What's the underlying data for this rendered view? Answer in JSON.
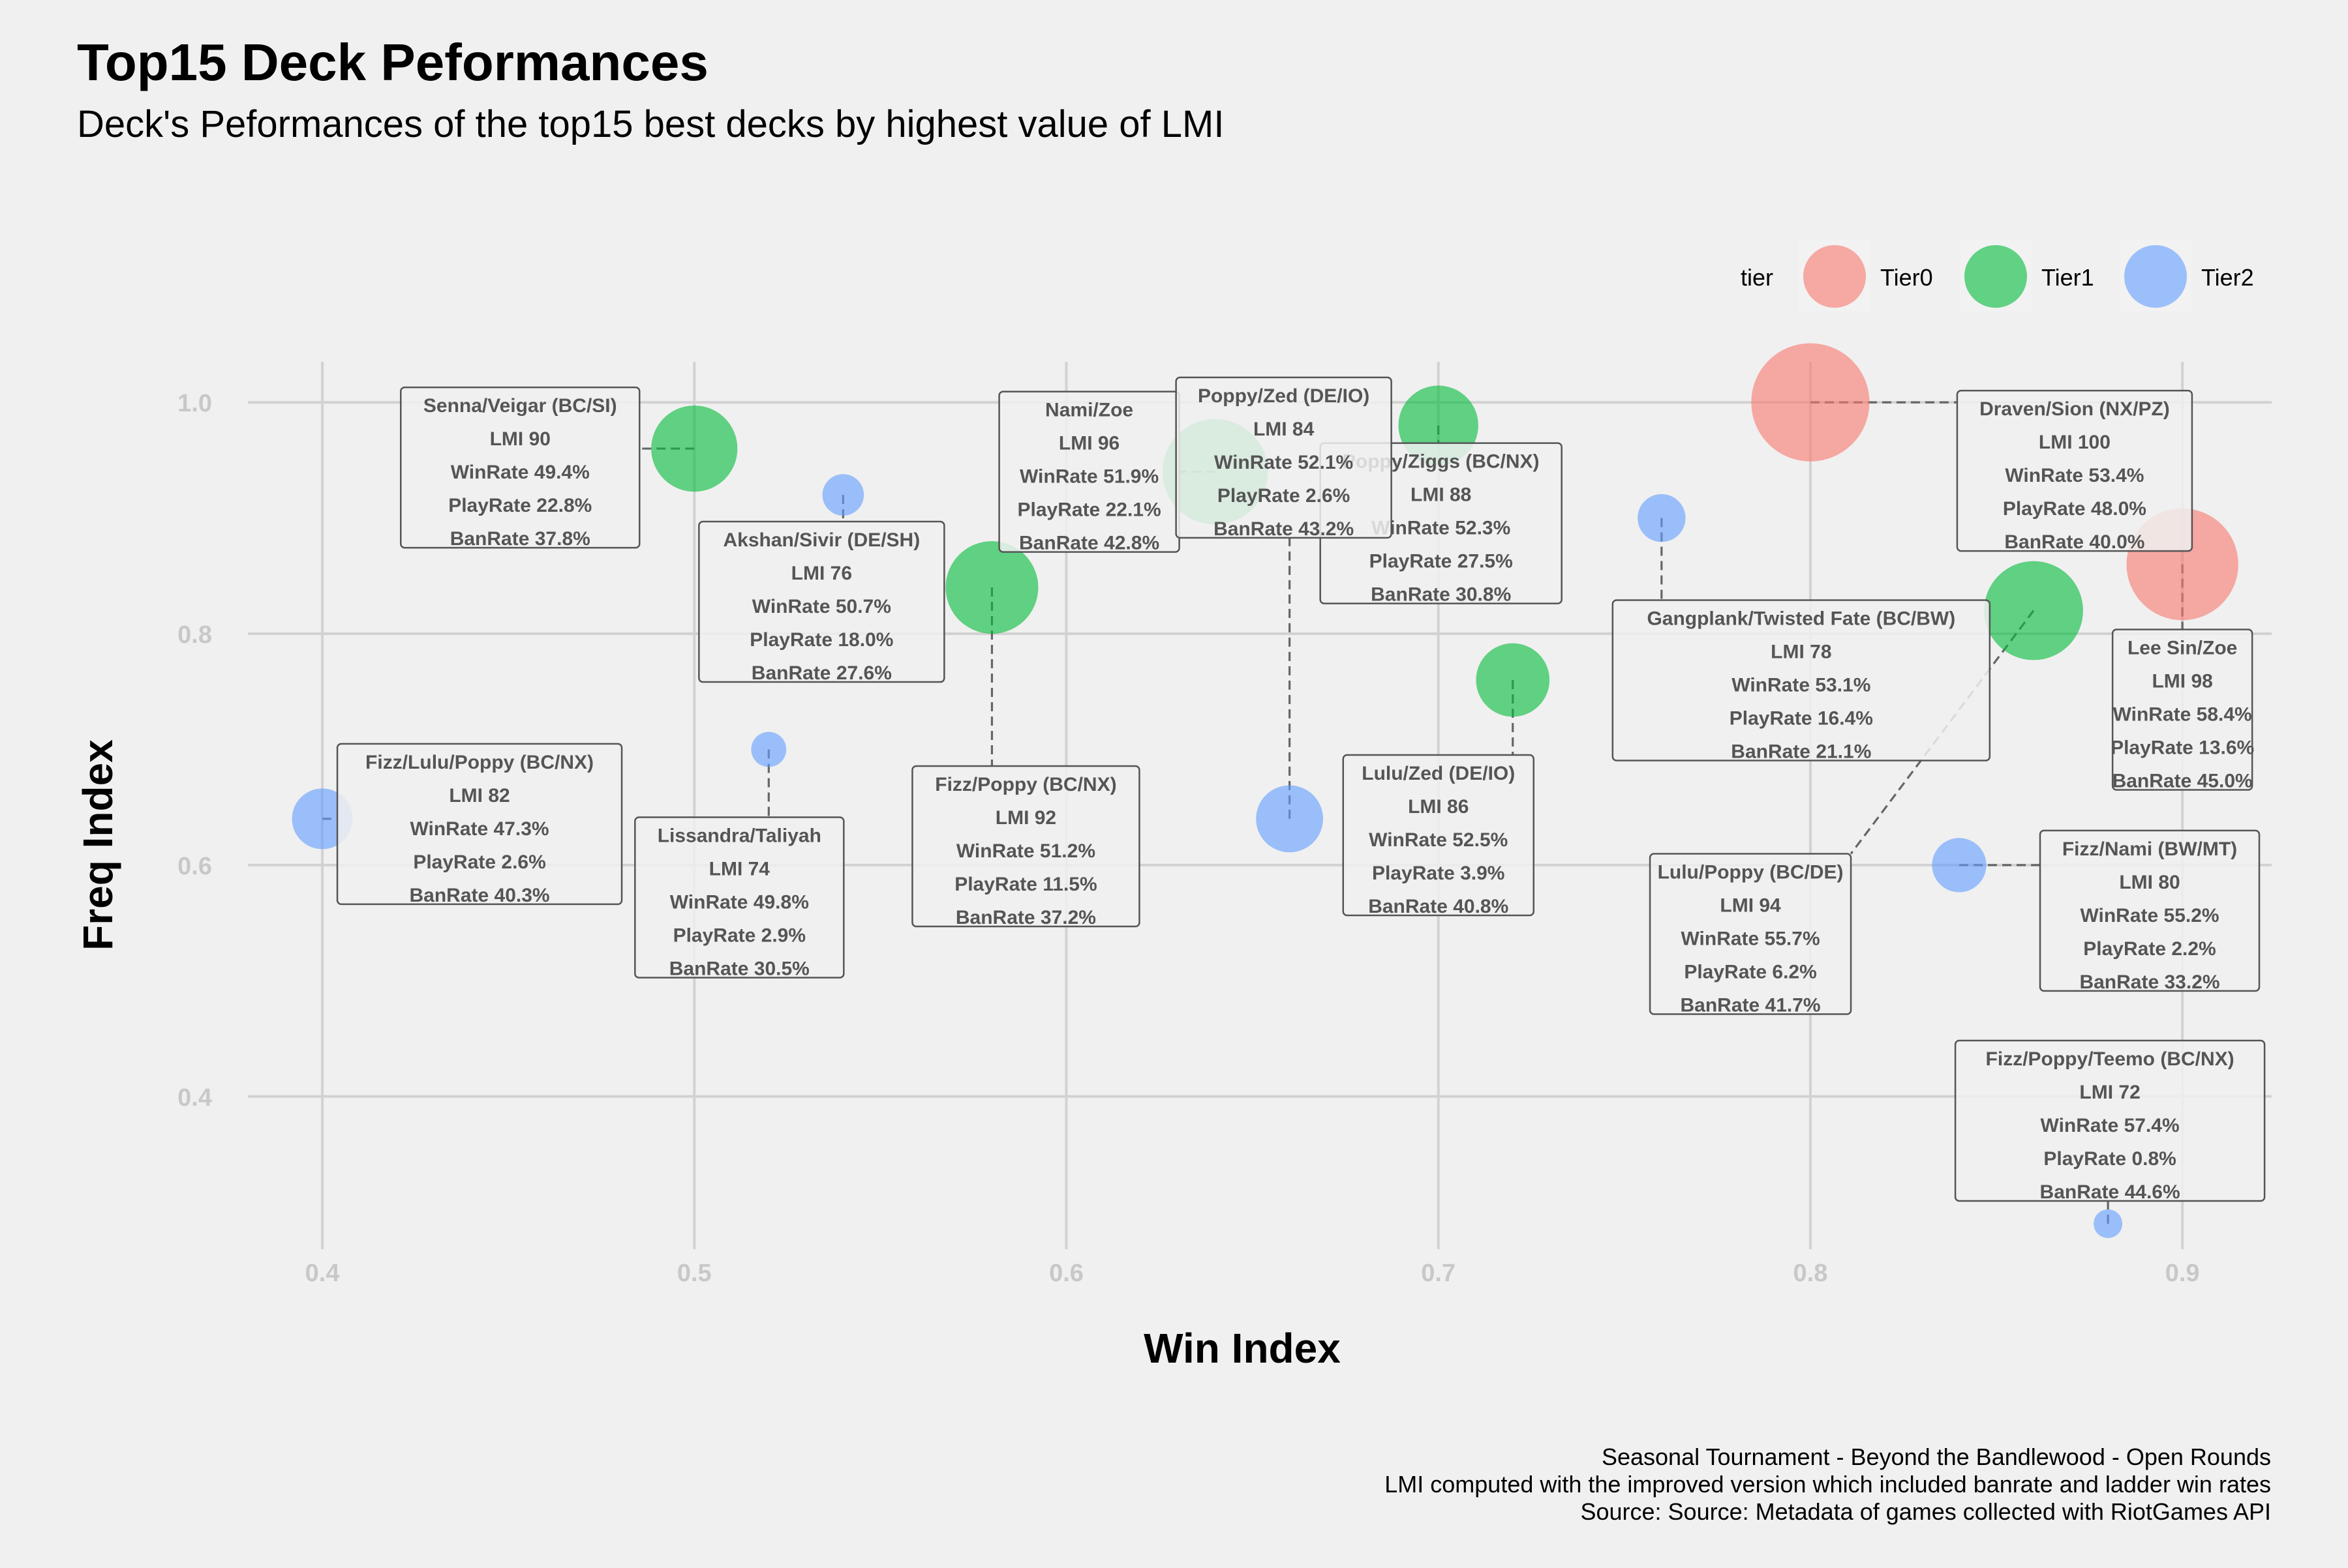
{
  "chart_data": {
    "type": "scatter",
    "title": "Top15 Deck Peformances",
    "subtitle": "Deck's Peformances of the top15 best decks by highest value of LMI",
    "xlabel": "Win Index",
    "ylabel": "Freq Index",
    "xlim": [
      0.38,
      0.924
    ],
    "ylim": [
      0.268,
      1.035
    ],
    "x_ticks": [
      "0.4",
      "0.5",
      "0.6",
      "0.7",
      "0.8",
      "0.9"
    ],
    "y_ticks": [
      "0.4",
      "0.6",
      "0.8",
      "1.0"
    ],
    "grid": true,
    "legend": {
      "title": "tier",
      "position": "top-right",
      "items": [
        {
          "name": "Tier0",
          "color": "#F8766D"
        },
        {
          "name": "Tier1",
          "color": "#00BA38"
        },
        {
          "name": "Tier2",
          "color": "#619CFF"
        }
      ]
    },
    "points": [
      {
        "deck": "Draven/Sion (NX/PZ)",
        "tier": "Tier0",
        "x": 0.8,
        "y": 1.0,
        "lmi": 100,
        "label": [
          "Draven/Sion (NX/PZ)",
          "LMI 100",
          "WinRate 53.4%",
          "PlayRate 48.0%",
          "BanRate 40.0%"
        ]
      },
      {
        "deck": "Lee Sin/Zoe",
        "tier": "Tier0",
        "x": 0.9,
        "y": 0.86,
        "lmi": 98,
        "label": [
          "Lee Sin/Zoe",
          "LMI 98",
          "WinRate 58.4%",
          "PlayRate 13.6%",
          "BanRate 45.0%"
        ]
      },
      {
        "deck": "Nami/Zoe",
        "tier": "Tier1",
        "x": 0.64,
        "y": 0.94,
        "lmi": 96,
        "label": [
          "Nami/Zoe",
          "LMI 96",
          "WinRate 51.9%",
          "PlayRate 22.1%",
          "BanRate 42.8%"
        ]
      },
      {
        "deck": "Lulu/Poppy (BC/DE)",
        "tier": "Tier1",
        "x": 0.86,
        "y": 0.82,
        "lmi": 94,
        "label": [
          "Lulu/Poppy (BC/DE)",
          "LMI 94",
          "WinRate 55.7%",
          "PlayRate 6.2%",
          "BanRate 41.7%"
        ]
      },
      {
        "deck": "Fizz/Poppy (BC/NX)",
        "tier": "Tier1",
        "x": 0.58,
        "y": 0.84,
        "lmi": 92,
        "label": [
          "Fizz/Poppy (BC/NX)",
          "LMI 92",
          "WinRate 51.2%",
          "PlayRate 11.5%",
          "BanRate 37.2%"
        ]
      },
      {
        "deck": "Senna/Veigar (BC/SI)",
        "tier": "Tier1",
        "x": 0.5,
        "y": 0.96,
        "lmi": 90,
        "label": [
          "Senna/Veigar (BC/SI)",
          "LMI 90",
          "WinRate 49.4%",
          "PlayRate 22.8%",
          "BanRate 37.8%"
        ]
      },
      {
        "deck": "Poppy/Ziggs (BC/NX)",
        "tier": "Tier1",
        "x": 0.7,
        "y": 0.98,
        "lmi": 88,
        "label": [
          "Poppy/Ziggs (BC/NX)",
          "LMI 88",
          "WinRate 52.3%",
          "PlayRate 27.5%",
          "BanRate 30.8%"
        ]
      },
      {
        "deck": "Lulu/Zed (DE/IO)",
        "tier": "Tier1",
        "x": 0.72,
        "y": 0.76,
        "lmi": 86,
        "label": [
          "Lulu/Zed (DE/IO)",
          "LMI 86",
          "WinRate 52.5%",
          "PlayRate 3.9%",
          "BanRate 40.8%"
        ]
      },
      {
        "deck": "Poppy/Zed (DE/IO)",
        "tier": "Tier2",
        "x": 0.66,
        "y": 0.64,
        "lmi": 84,
        "label": [
          "Poppy/Zed (DE/IO)",
          "LMI 84",
          "WinRate 52.1%",
          "PlayRate 2.6%",
          "BanRate 43.2%"
        ]
      },
      {
        "deck": "Fizz/Lulu/Poppy (BC/NX)",
        "tier": "Tier2",
        "x": 0.4,
        "y": 0.64,
        "lmi": 82,
        "label": [
          "Fizz/Lulu/Poppy (BC/NX)",
          "LMI 82",
          "WinRate 47.3%",
          "PlayRate 2.6%",
          "BanRate 40.3%"
        ]
      },
      {
        "deck": "Fizz/Nami (BW/MT)",
        "tier": "Tier2",
        "x": 0.84,
        "y": 0.6,
        "lmi": 80,
        "label": [
          "Fizz/Nami (BW/MT)",
          "LMI 80",
          "WinRate 55.2%",
          "PlayRate 2.2%",
          "BanRate 33.2%"
        ]
      },
      {
        "deck": "Gangplank/Twisted Fate (BC/BW)",
        "tier": "Tier2",
        "x": 0.76,
        "y": 0.9,
        "lmi": 78,
        "label": [
          "Gangplank/Twisted Fate (BC/BW)",
          "LMI 78",
          "WinRate 53.1%",
          "PlayRate 16.4%",
          "BanRate 21.1%"
        ]
      },
      {
        "deck": "Akshan/Sivir (DE/SH)",
        "tier": "Tier2",
        "x": 0.54,
        "y": 0.92,
        "lmi": 76,
        "label": [
          "Akshan/Sivir (DE/SH)",
          "LMI 76",
          "WinRate 50.7%",
          "PlayRate 18.0%",
          "BanRate 27.6%"
        ]
      },
      {
        "deck": "Lissandra/Taliyah",
        "tier": "Tier2",
        "x": 0.52,
        "y": 0.7,
        "lmi": 74,
        "label": [
          "Lissandra/Taliyah",
          "LMI 74",
          "WinRate 49.8%",
          "PlayRate 2.9%",
          "BanRate 30.5%"
        ]
      },
      {
        "deck": "Fizz/Poppy/Teemo (BC/NX)",
        "tier": "Tier2",
        "x": 0.88,
        "y": 0.29,
        "lmi": 72,
        "label": [
          "Fizz/Poppy/Teemo (BC/NX)",
          "LMI 72",
          "WinRate 57.4%",
          "PlayRate 0.8%",
          "BanRate 44.6%"
        ]
      }
    ],
    "caption": [
      "Seasonal Tournament - Beyond the Bandlewood - Open Rounds",
      "LMI computed with the improved version which included banrate and ladder win rates",
      "Source: Source: Metadata of games collected with RiotGames API"
    ]
  }
}
